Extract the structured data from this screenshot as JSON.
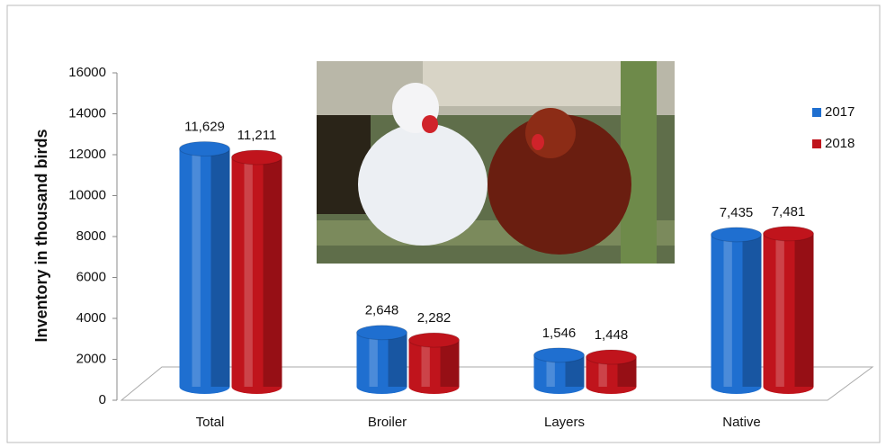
{
  "chart_data": {
    "type": "bar",
    "ylabel": "Inventory in thousand birds",
    "categories": [
      "Total",
      "Broiler",
      "Layers",
      "Native"
    ],
    "series": [
      {
        "name": "2017",
        "color": "#1f6fd0",
        "values": [
          11629,
          2648,
          1546,
          7435
        ],
        "value_labels": [
          "11,629",
          "2,648",
          "1,546",
          "7,435"
        ]
      },
      {
        "name": "2018",
        "color": "#c0141c",
        "values": [
          11211,
          2282,
          1448,
          7481
        ],
        "value_labels": [
          "11,211",
          "2,282",
          "1,448",
          "7,481"
        ]
      }
    ],
    "ylim": [
      0,
      16000
    ],
    "yticks": [
      0,
      2000,
      4000,
      6000,
      8000,
      10000,
      12000,
      14000,
      16000
    ],
    "legend": "right"
  }
}
